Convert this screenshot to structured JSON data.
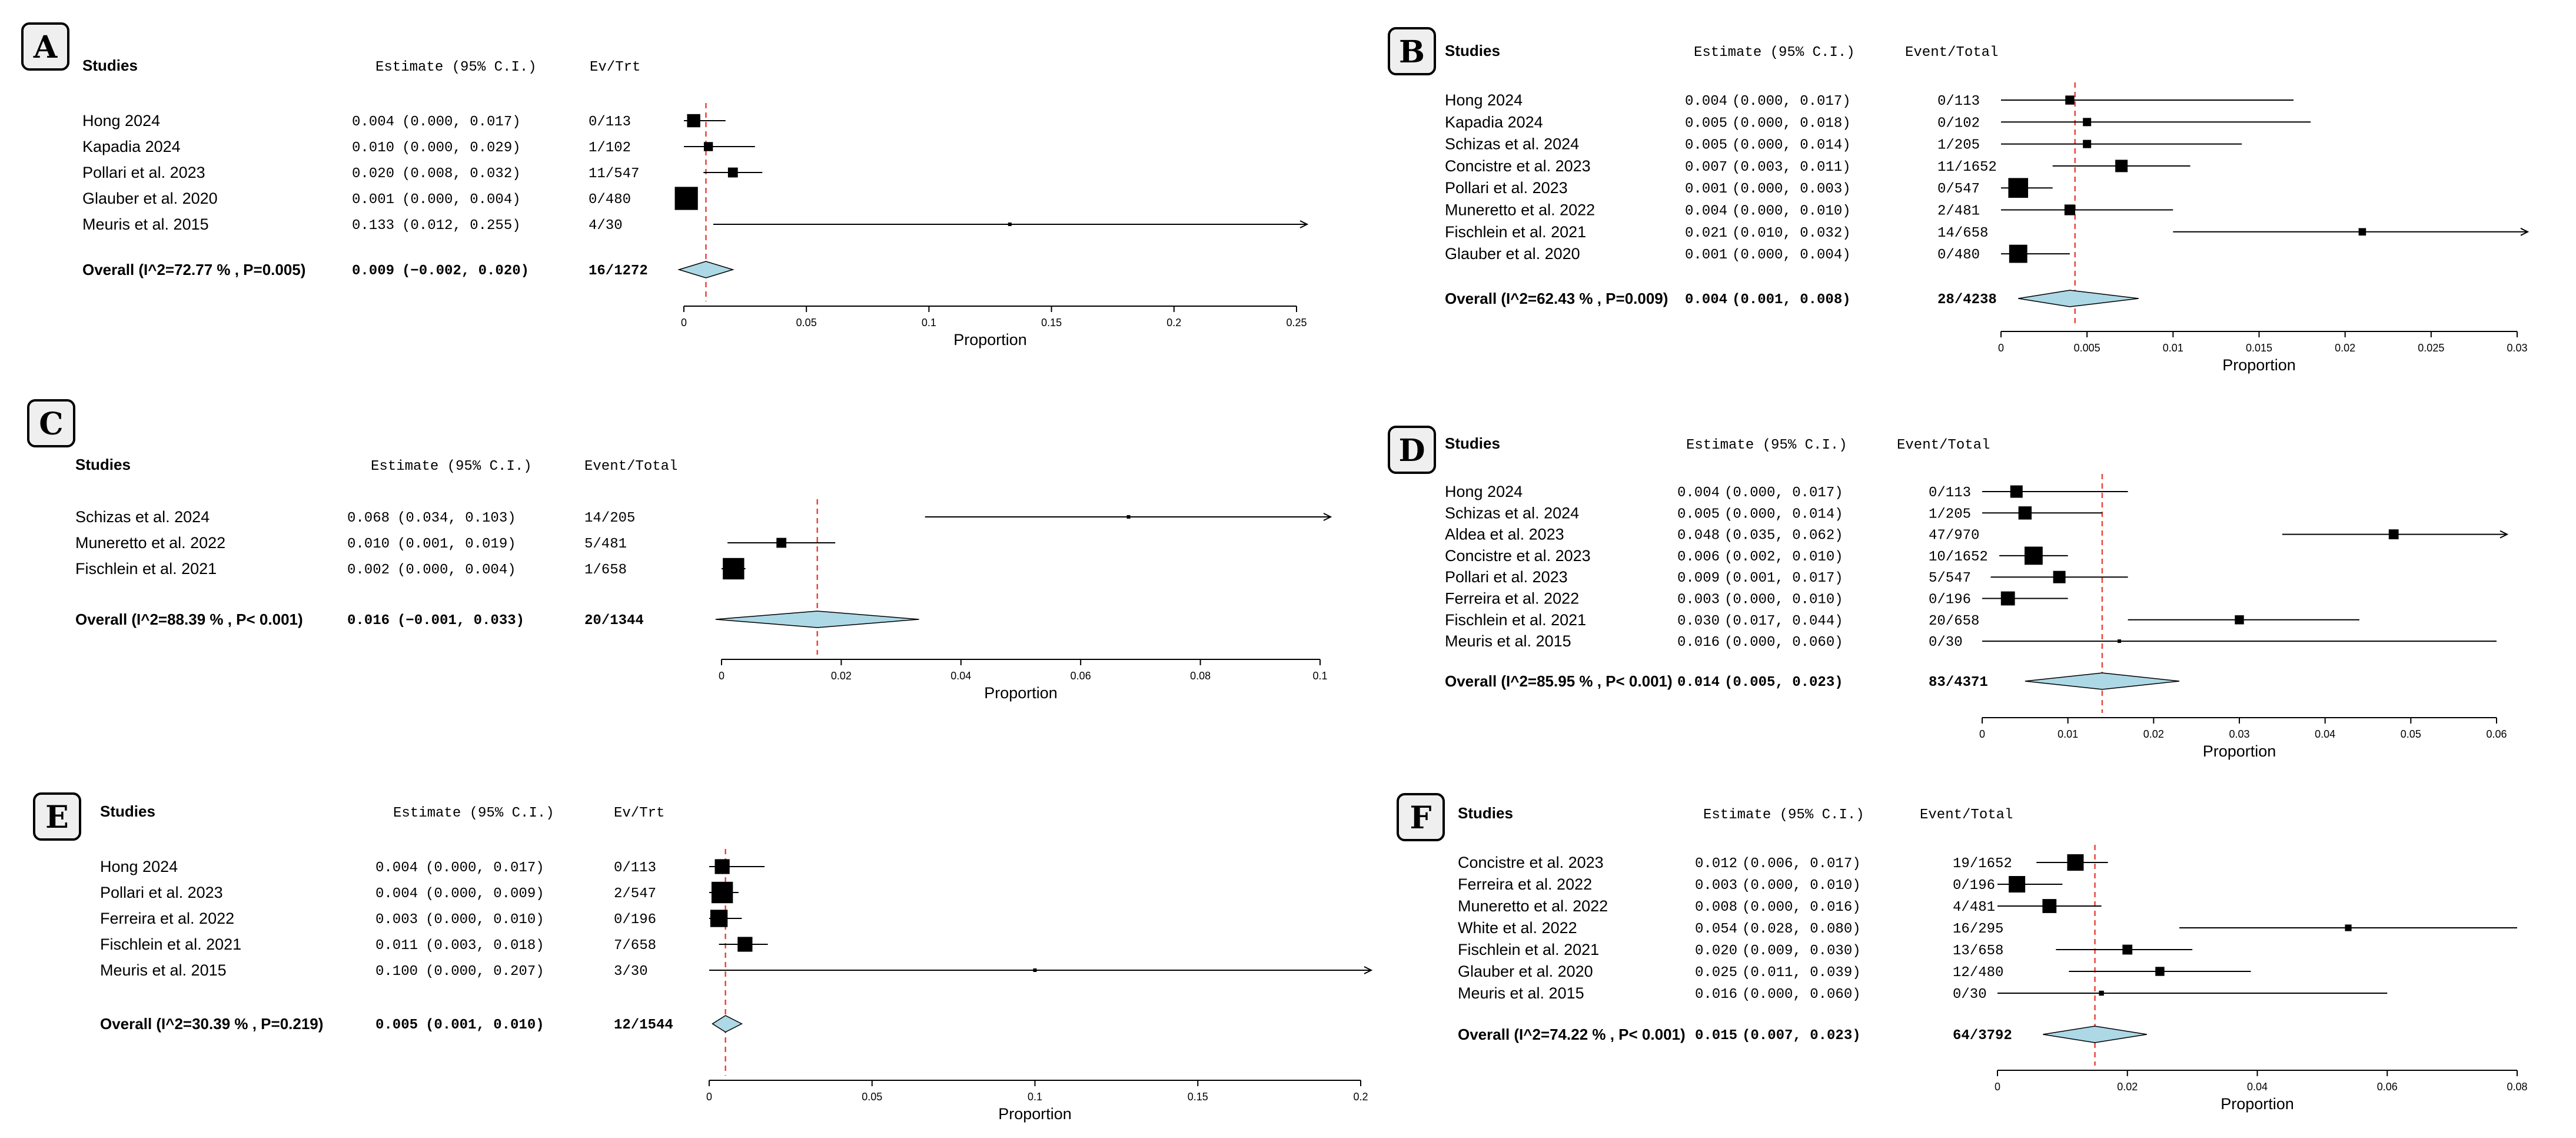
{
  "colors": {
    "diamond": "#add8e6",
    "ref_line": "#e8453c",
    "ink": "#000000",
    "badge_bg": "#efefef"
  },
  "chart_data": [
    {
      "type": "forest",
      "panel": "A",
      "col_studies": "Studies",
      "col_estimate": "Estimate (95% C.I.)",
      "col_events": "Ev/Trt",
      "xlabel": "Proportion",
      "xlim": [
        0,
        0.25
      ],
      "ticks": [
        0,
        0.05,
        0.1,
        0.15,
        0.2,
        0.25
      ],
      "tick_labels": [
        "0",
        "0.05",
        "0.1",
        "0.15",
        "0.2",
        "0.25"
      ],
      "ref_line": 0.009,
      "studies": [
        {
          "name": "Hong 2024",
          "est": 0.004,
          "lo": 0.0,
          "hi": 0.017,
          "est_text": "0.004",
          "ci_text": "(0.000, 0.017)",
          "events": "0/113",
          "weight": 0.8
        },
        {
          "name": "Kapadia 2024",
          "est": 0.01,
          "lo": 0.0,
          "hi": 0.029,
          "est_text": "0.010",
          "ci_text": "(0.000, 0.029)",
          "events": "1/102",
          "weight": 0.55
        },
        {
          "name": "Pollari et al.  2023",
          "est": 0.02,
          "lo": 0.008,
          "hi": 0.032,
          "est_text": "0.020",
          "ci_text": "(0.008, 0.032)",
          "events": "11/547",
          "weight": 0.6
        },
        {
          "name": "Glauber et al. 2020",
          "est": 0.001,
          "lo": 0.0,
          "hi": 0.004,
          "est_text": "0.001",
          "ci_text": "(0.000, 0.004)",
          "events": "0/480",
          "weight": 1.4
        },
        {
          "name": "Meuris et al. 2015",
          "est": 0.133,
          "lo": 0.012,
          "hi": 0.255,
          "est_text": "0.133",
          "ci_text": "(0.012, 0.255)",
          "events": "4/30",
          "weight": 0.1
        }
      ],
      "overall": {
        "label": "Overall (I^2=72.77 % , P=0.005)",
        "est": 0.009,
        "lo": -0.002,
        "hi": 0.02,
        "est_text": "0.009",
        "ci_text": "(−0.002, 0.020)",
        "events": "16/1272"
      }
    },
    {
      "type": "forest",
      "panel": "B",
      "col_studies": "Studies",
      "col_estimate": "Estimate (95% C.I.)",
      "col_events": "Event/Total",
      "xlabel": "Proportion",
      "xlim": [
        0,
        0.03
      ],
      "ticks": [
        0,
        0.005,
        0.01,
        0.015,
        0.02,
        0.025,
        0.03
      ],
      "tick_labels": [
        "0",
        "0.005",
        "0.01",
        "0.015",
        "0.02",
        "0.025",
        "0.03"
      ],
      "ref_line": 0.0043,
      "studies": [
        {
          "name": "Hong 2024",
          "est": 0.004,
          "lo": 0.0,
          "hi": 0.017,
          "est_text": "0.004",
          "ci_text": "(0.000, 0.017)",
          "events": "0/113",
          "weight": 0.55
        },
        {
          "name": "Kapadia 2024",
          "est": 0.005,
          "lo": 0.0,
          "hi": 0.018,
          "est_text": "0.005",
          "ci_text": "(0.000, 0.018)",
          "events": "0/102",
          "weight": 0.5
        },
        {
          "name": "Schizas et al. 2024",
          "est": 0.005,
          "lo": 0.0,
          "hi": 0.014,
          "est_text": "0.005",
          "ci_text": "(0.000, 0.014)",
          "events": "1/205",
          "weight": 0.5
        },
        {
          "name": "Concistre et al. 2023",
          "est": 0.007,
          "lo": 0.003,
          "hi": 0.011,
          "est_text": "0.007",
          "ci_text": "(0.003, 0.011)",
          "events": "11/1652",
          "weight": 0.75
        },
        {
          "name": "Pollari et al.  2023",
          "est": 0.001,
          "lo": 0.0,
          "hi": 0.003,
          "est_text": "0.001",
          "ci_text": "(0.000, 0.003)",
          "events": "0/547",
          "weight": 1.2
        },
        {
          "name": "Muneretto et al. 2022",
          "est": 0.004,
          "lo": 0.0,
          "hi": 0.01,
          "est_text": "0.004",
          "ci_text": "(0.000, 0.010)",
          "events": "2/481",
          "weight": 0.65
        },
        {
          "name": "Fischlein et al. 2021",
          "est": 0.021,
          "lo": 0.01,
          "hi": 0.032,
          "est_text": "0.021",
          "ci_text": "(0.010, 0.032)",
          "events": "14/658",
          "weight": 0.45
        },
        {
          "name": "Glauber et al. 2020",
          "est": 0.001,
          "lo": 0.0,
          "hi": 0.004,
          "est_text": "0.001",
          "ci_text": "(0.000, 0.004)",
          "events": "0/480",
          "weight": 1.1
        }
      ],
      "overall": {
        "label": "Overall (I^2=62.43 % , P=0.009)",
        "est": 0.004,
        "lo": 0.001,
        "hi": 0.008,
        "est_text": "0.004",
        "ci_text": "(0.001, 0.008)",
        "events": "28/4238"
      }
    },
    {
      "type": "forest",
      "panel": "C",
      "col_studies": "Studies",
      "col_estimate": "Estimate (95% C.I.)",
      "col_events": "Event/Total",
      "xlabel": "Proportion",
      "xlim": [
        0,
        0.1
      ],
      "ticks": [
        0,
        0.02,
        0.04,
        0.06,
        0.08,
        0.1
      ],
      "tick_labels": [
        "0",
        "0.02",
        "0.04",
        "0.06",
        "0.08",
        "0.1"
      ],
      "ref_line": 0.016,
      "studies": [
        {
          "name": "Schizas et al. 2024",
          "est": 0.068,
          "lo": 0.034,
          "hi": 0.103,
          "est_text": "0.068",
          "ci_text": "(0.034, 0.103)",
          "events": "14/205",
          "weight": 0.2
        },
        {
          "name": "Muneretto et al. 2022",
          "est": 0.01,
          "lo": 0.001,
          "hi": 0.019,
          "est_text": "0.010",
          "ci_text": "(0.001, 0.019)",
          "events": "5/481",
          "weight": 0.6
        },
        {
          "name": "Fischlein et al. 2021",
          "est": 0.002,
          "lo": 0.0,
          "hi": 0.004,
          "est_text": "0.002",
          "ci_text": "(0.000, 0.004)",
          "events": "1/658",
          "weight": 1.3
        }
      ],
      "overall": {
        "label": "Overall (I^2=88.39 % , P< 0.001)",
        "est": 0.016,
        "lo": -0.001,
        "hi": 0.033,
        "est_text": "0.016",
        "ci_text": "(−0.001, 0.033)",
        "events": "20/1344"
      }
    },
    {
      "type": "forest",
      "panel": "D",
      "col_studies": "Studies",
      "col_estimate": "Estimate (95% C.I.)",
      "col_events": "Event/Total",
      "xlabel": "Proportion",
      "xlim": [
        0,
        0.06
      ],
      "ticks": [
        0,
        0.01,
        0.02,
        0.03,
        0.04,
        0.05,
        0.06
      ],
      "tick_labels": [
        "0",
        "0.01",
        "0.02",
        "0.03",
        "0.04",
        "0.05",
        "0.06"
      ],
      "ref_line": 0.014,
      "studies": [
        {
          "name": "Hong 2024",
          "est": 0.004,
          "lo": 0.0,
          "hi": 0.017,
          "est_text": "0.004",
          "ci_text": "(0.000, 0.017)",
          "events": "0/113",
          "weight": 0.75
        },
        {
          "name": "Schizas et al. 2024",
          "est": 0.005,
          "lo": 0.0,
          "hi": 0.014,
          "est_text": "0.005",
          "ci_text": "(0.000, 0.014)",
          "events": "1/205",
          "weight": 0.8
        },
        {
          "name": "Aldea et al. 2023",
          "est": 0.048,
          "lo": 0.035,
          "hi": 0.062,
          "est_text": "0.048",
          "ci_text": "(0.035, 0.062)",
          "events": "47/970",
          "weight": 0.6
        },
        {
          "name": "Concistre et al. 2023",
          "est": 0.006,
          "lo": 0.002,
          "hi": 0.01,
          "est_text": "0.006",
          "ci_text": "(0.002, 0.010)",
          "events": "10/1652",
          "weight": 1.1
        },
        {
          "name": "Pollari et al.  2023",
          "est": 0.009,
          "lo": 0.001,
          "hi": 0.017,
          "est_text": "0.009",
          "ci_text": "(0.001, 0.017)",
          "events": "5/547",
          "weight": 0.75
        },
        {
          "name": "Ferreira et al. 2022",
          "est": 0.003,
          "lo": 0.0,
          "hi": 0.01,
          "est_text": "0.003",
          "ci_text": "(0.000, 0.010)",
          "events": "0/196",
          "weight": 0.85
        },
        {
          "name": "Fischlein et al. 2021",
          "est": 0.03,
          "lo": 0.017,
          "hi": 0.044,
          "est_text": "0.030",
          "ci_text": "(0.017, 0.044)",
          "events": "20/658",
          "weight": 0.55
        },
        {
          "name": "Meuris et al. 2015",
          "est": 0.016,
          "lo": 0.0,
          "hi": 0.06,
          "est_text": "0.016",
          "ci_text": "(0.000, 0.060)",
          "events": "0/30",
          "weight": 0.15
        }
      ],
      "overall": {
        "label": "Overall (I^2=85.95 % , P< 0.001)",
        "est": 0.014,
        "lo": 0.005,
        "hi": 0.023,
        "est_text": "0.014",
        "ci_text": "(0.005, 0.023)",
        "events": "83/4371"
      }
    },
    {
      "type": "forest",
      "panel": "E",
      "col_studies": "Studies",
      "col_estimate": "Estimate (95% C.I.)",
      "col_events": "Ev/Trt",
      "xlabel": "Proportion",
      "xlim": [
        0,
        0.2
      ],
      "ticks": [
        0,
        0.05,
        0.1,
        0.15,
        0.2
      ],
      "tick_labels": [
        "0",
        "0.05",
        "0.1",
        "0.15",
        "0.2"
      ],
      "ref_line": 0.005,
      "studies": [
        {
          "name": "Hong 2024",
          "est": 0.004,
          "lo": 0.0,
          "hi": 0.017,
          "est_text": "0.004",
          "ci_text": "(0.000, 0.017)",
          "events": "0/113",
          "weight": 0.9
        },
        {
          "name": "Pollari et al.  2023",
          "est": 0.004,
          "lo": 0.0,
          "hi": 0.009,
          "est_text": "0.004",
          "ci_text": "(0.000, 0.009)",
          "events": "2/547",
          "weight": 1.3
        },
        {
          "name": "Ferreira et al. 2022",
          "est": 0.003,
          "lo": 0.0,
          "hi": 0.01,
          "est_text": "0.003",
          "ci_text": "(0.000, 0.010)",
          "events": "0/196",
          "weight": 1.05
        },
        {
          "name": "Fischlein et al. 2021",
          "est": 0.011,
          "lo": 0.003,
          "hi": 0.018,
          "est_text": "0.011",
          "ci_text": "(0.003, 0.018)",
          "events": "7/658",
          "weight": 0.9
        },
        {
          "name": "Meuris et al. 2015",
          "est": 0.1,
          "lo": 0.0,
          "hi": 0.207,
          "est_text": "0.100",
          "ci_text": "(0.000, 0.207)",
          "events": "3/30",
          "weight": 0.12
        }
      ],
      "overall": {
        "label": "Overall (I^2=30.39 % , P=0.219)",
        "est": 0.005,
        "lo": 0.001,
        "hi": 0.01,
        "est_text": "0.005",
        "ci_text": "(0.001, 0.010)",
        "events": "12/1544"
      }
    },
    {
      "type": "forest",
      "panel": "F",
      "col_studies": "Studies",
      "col_estimate": "Estimate (95% C.I.)",
      "col_events": "Event/Total",
      "xlabel": "Proportion",
      "xlim": [
        0,
        0.08
      ],
      "ticks": [
        0,
        0.02,
        0.04,
        0.06,
        0.08
      ],
      "tick_labels": [
        "0",
        "0.02",
        "0.04",
        "0.06",
        "0.08"
      ],
      "ref_line": 0.015,
      "studies": [
        {
          "name": "Concistre et al. 2023",
          "est": 0.012,
          "lo": 0.006,
          "hi": 0.017,
          "est_text": "0.012",
          "ci_text": "(0.006, 0.017)",
          "events": "19/1652",
          "weight": 1.0
        },
        {
          "name": "Ferreira et al. 2022",
          "est": 0.003,
          "lo": 0.0,
          "hi": 0.01,
          "est_text": "0.003",
          "ci_text": "(0.000, 0.010)",
          "events": "0/196",
          "weight": 1.0
        },
        {
          "name": "Muneretto et al. 2022",
          "est": 0.008,
          "lo": 0.0,
          "hi": 0.016,
          "est_text": "0.008",
          "ci_text": "(0.000, 0.016)",
          "events": "4/481",
          "weight": 0.85
        },
        {
          "name": "White et al. 2022",
          "est": 0.054,
          "lo": 0.028,
          "hi": 0.08,
          "est_text": "0.054",
          "ci_text": "(0.028, 0.080)",
          "events": "16/295",
          "weight": 0.4
        },
        {
          "name": "Fischlein et al. 2021",
          "est": 0.02,
          "lo": 0.009,
          "hi": 0.03,
          "est_text": "0.020",
          "ci_text": "(0.009, 0.030)",
          "events": "13/658",
          "weight": 0.6
        },
        {
          "name": "Glauber et al. 2020",
          "est": 0.025,
          "lo": 0.011,
          "hi": 0.039,
          "est_text": "0.025",
          "ci_text": "(0.011, 0.039)",
          "events": "12/480",
          "weight": 0.55
        },
        {
          "name": "Meuris et al. 2015",
          "est": 0.016,
          "lo": 0.0,
          "hi": 0.06,
          "est_text": "0.016",
          "ci_text": "(0.000, 0.060)",
          "events": "0/30",
          "weight": 0.3
        }
      ],
      "overall": {
        "label": "Overall (I^2=74.22 % , P< 0.001)",
        "est": 0.015,
        "lo": 0.007,
        "hi": 0.023,
        "est_text": "0.015",
        "ci_text": "(0.007, 0.023)",
        "events": "64/3792"
      }
    }
  ]
}
